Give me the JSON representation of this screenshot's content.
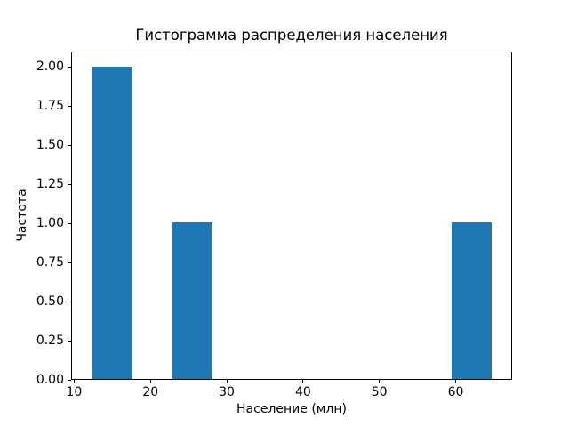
{
  "chart_data": {
    "type": "bar",
    "subtype": "histogram",
    "title": "Гистограмма распределения населения",
    "xlabel": "Население (млн)",
    "ylabel": "Частота",
    "xlim": [
      9.6,
      67.4
    ],
    "ylim": [
      0,
      2.1
    ],
    "xticks": [
      {
        "v": 10,
        "label": "10"
      },
      {
        "v": 20,
        "label": "20"
      },
      {
        "v": 30,
        "label": "30"
      },
      {
        "v": 40,
        "label": "40"
      },
      {
        "v": 50,
        "label": "50"
      },
      {
        "v": 60,
        "label": "60"
      }
    ],
    "yticks": [
      {
        "v": 0.0,
        "label": "0.00"
      },
      {
        "v": 0.25,
        "label": "0.25"
      },
      {
        "v": 0.5,
        "label": "0.50"
      },
      {
        "v": 0.75,
        "label": "0.75"
      },
      {
        "v": 1.0,
        "label": "1.00"
      },
      {
        "v": 1.25,
        "label": "1.25"
      },
      {
        "v": 1.5,
        "label": "1.50"
      },
      {
        "v": 1.75,
        "label": "1.75"
      },
      {
        "v": 2.0,
        "label": "2.00"
      }
    ],
    "bars": [
      {
        "x0": 12.33,
        "x1": 17.56,
        "height": 2
      },
      {
        "x0": 22.79,
        "x1": 28.02,
        "height": 1
      },
      {
        "x0": 59.4,
        "x1": 64.63,
        "height": 1
      }
    ],
    "bar_color": "#1f77b4",
    "spine_color": "#000000",
    "grid": false,
    "legend": null
  }
}
